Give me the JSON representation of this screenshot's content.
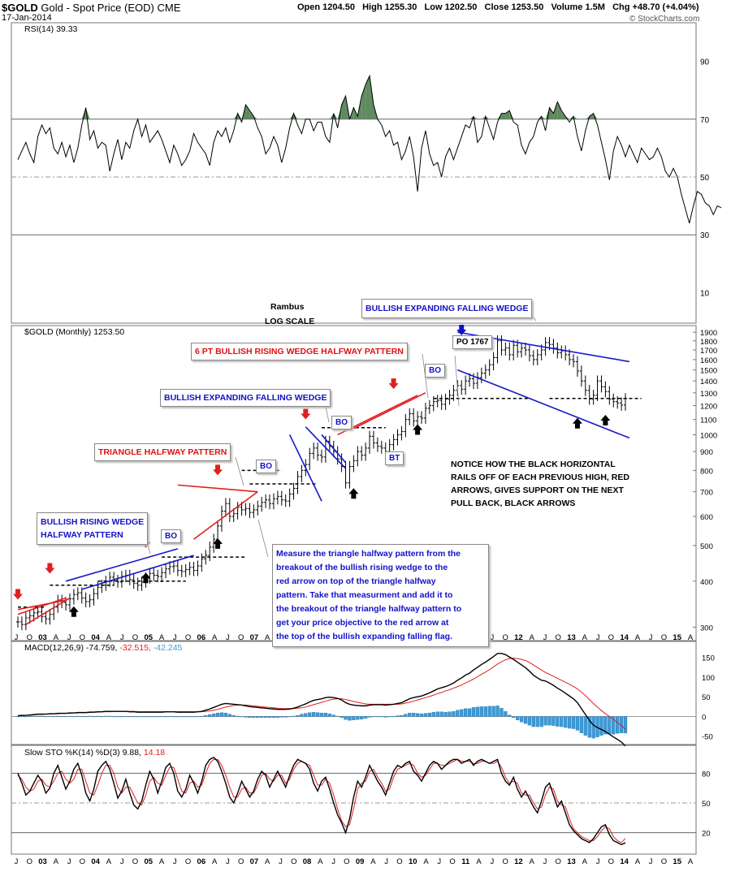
{
  "header": {
    "symbol": "$GOLD",
    "name": "Gold - Spot Price (EOD)",
    "exchange": "CME",
    "date": "17-Jan-2014",
    "open": "Open 1204.50",
    "high": "High 1255.30",
    "low": "Low 1202.50",
    "close": "Close 1253.50",
    "volume": "Volume 1.5M",
    "chg": "Chg +48.70 (+4.04%)",
    "watermark": "© StockCharts.com"
  },
  "colors": {
    "price_bar": "#000000",
    "support_line": "#000000",
    "triangle_line": "#e02020",
    "wedge_line": "#1818c8",
    "rsi_fill": "#5f8a5f",
    "macd_hist": "#3a9ad8",
    "signal_red": "#e02020",
    "annotation_blue": "#1212c8",
    "annotation_red": "#e01010"
  },
  "chart_data": [
    {
      "panel": "rsi",
      "type": "line",
      "indicator": "RSI(14)",
      "legend": "RSI(14) 39.33",
      "ylim": [
        0,
        100
      ],
      "yticks": [
        90,
        70,
        50,
        30,
        10
      ],
      "reference_lines": [
        70,
        50,
        30
      ],
      "fill_above": 70,
      "values": [
        56,
        59,
        62,
        58,
        55,
        64,
        68,
        65,
        67,
        60,
        58,
        62,
        57,
        61,
        55,
        60,
        68,
        74,
        63,
        66,
        60,
        62,
        61,
        52,
        58,
        63,
        56,
        62,
        60,
        66,
        70,
        64,
        68,
        62,
        64,
        66,
        63,
        59,
        55,
        61,
        58,
        54,
        56,
        59,
        65,
        62,
        60,
        58,
        54,
        62,
        66,
        64,
        67,
        62,
        66,
        72,
        69,
        75,
        73,
        71,
        67,
        64,
        58,
        60,
        64,
        61,
        55,
        60,
        67,
        72,
        68,
        65,
        70,
        70,
        66,
        69,
        69,
        64,
        62,
        72,
        67,
        75,
        78,
        70,
        74,
        71,
        78,
        82,
        85,
        75,
        70,
        68,
        64,
        66,
        61,
        62,
        56,
        59,
        64,
        57,
        45,
        60,
        66,
        58,
        54,
        55,
        50,
        57,
        60,
        56,
        60,
        64,
        68,
        67,
        71,
        62,
        64,
        71,
        67,
        63,
        69,
        72,
        72,
        73,
        69,
        68,
        61,
        58,
        62,
        64,
        69,
        71,
        66,
        74,
        72,
        76,
        73,
        71,
        69,
        71,
        64,
        59,
        66,
        71,
        72,
        68,
        62,
        56,
        49,
        59,
        64,
        61,
        57,
        61,
        58,
        55,
        60,
        58,
        56,
        57,
        60,
        57,
        52,
        50,
        53,
        50,
        44,
        39,
        34,
        40,
        45,
        44,
        41,
        40,
        37,
        40,
        39.33
      ]
    },
    {
      "panel": "price",
      "type": "line",
      "title": "$GOLD (Monthly) 1253.50",
      "scale": "log",
      "ylim": [
        280,
        1950
      ],
      "yticks": [
        1900,
        1800,
        1700,
        1600,
        1500,
        1400,
        1300,
        1200,
        1100,
        1000,
        900,
        800,
        700,
        600,
        500,
        400,
        300
      ],
      "x_tick_labels": [
        "J",
        "O",
        "03",
        "A",
        "J",
        "O",
        "04",
        "A",
        "J",
        "O",
        "05",
        "A",
        "J",
        "O",
        "06",
        "A",
        "J",
        "O",
        "07",
        "A",
        "J",
        "O",
        "08",
        "A",
        "J",
        "O",
        "09",
        "A",
        "J",
        "O",
        "10",
        "A",
        "J",
        "O",
        "11",
        "A",
        "J",
        "O",
        "12",
        "A",
        "J",
        "O",
        "13",
        "A",
        "J",
        "O",
        "14",
        "A",
        "J",
        "O",
        "15",
        "A"
      ],
      "close": [
        310,
        305,
        318,
        322,
        328,
        330,
        320,
        316,
        325,
        340,
        355,
        350,
        345,
        358,
        368,
        372,
        360,
        352,
        356,
        370,
        385,
        390,
        400,
        410,
        402,
        398,
        412,
        415,
        404,
        395,
        390,
        398,
        408,
        420,
        415,
        412,
        422,
        432,
        438,
        440,
        428,
        425,
        430,
        436,
        428,
        440,
        460,
        470,
        495,
        520,
        565,
        620,
        650,
        600,
        610,
        635,
        625,
        630,
        615,
        625,
        640,
        655,
        665,
        650,
        670,
        680,
        665,
        660,
        690,
        715,
        770,
        800,
        830,
        890,
        920,
        880,
        870,
        960,
        930,
        900,
        860,
        820,
        740,
        820,
        850,
        900,
        880,
        920,
        990,
        950,
        930,
        920,
        900,
        940,
        970,
        1000,
        1020,
        1100,
        1140,
        1090,
        1120,
        1110,
        1180,
        1200,
        1230,
        1240,
        1210,
        1250,
        1280,
        1320,
        1360,
        1330,
        1400,
        1420,
        1380,
        1430,
        1470,
        1500,
        1550,
        1620,
        1800,
        1700,
        1720,
        1650,
        1750,
        1680,
        1720,
        1700,
        1640,
        1600,
        1650,
        1700,
        1780,
        1760,
        1720,
        1670,
        1690,
        1650,
        1600,
        1580,
        1490,
        1400,
        1320,
        1250,
        1280,
        1400,
        1350,
        1310,
        1250,
        1230,
        1220,
        1204,
        1253.5
      ]
    },
    {
      "panel": "macd",
      "type": "line",
      "indicator": "MACD(12,26,9)",
      "legend_parts": [
        "MACD(12,26,9)",
        "-74.759,",
        "-32.515,",
        "-42.245"
      ],
      "ylim": [
        -65,
        170
      ],
      "yticks": [
        150,
        100,
        50,
        0,
        -50
      ],
      "macd": [
        2,
        3,
        3,
        4,
        5,
        6,
        6,
        6,
        7,
        7,
        8,
        8,
        8,
        9,
        9,
        10,
        10,
        10,
        11,
        11,
        12,
        12,
        13,
        13,
        13,
        13,
        13,
        13,
        12,
        12,
        11,
        11,
        11,
        11,
        11,
        11,
        11,
        12,
        12,
        12,
        11,
        11,
        11,
        11,
        11,
        12,
        13,
        16,
        19,
        23,
        27,
        31,
        33,
        32,
        31,
        30,
        29,
        27,
        25,
        24,
        23,
        22,
        21,
        20,
        19,
        18,
        18,
        18,
        19,
        21,
        24,
        28,
        32,
        37,
        41,
        43,
        45,
        48,
        49,
        48,
        46,
        42,
        35,
        31,
        29,
        28,
        27,
        27,
        29,
        30,
        30,
        30,
        29,
        30,
        31,
        33,
        35,
        40,
        45,
        48,
        50,
        52,
        56,
        60,
        65,
        70,
        73,
        76,
        80,
        85,
        92,
        98,
        105,
        110,
        118,
        125,
        132,
        138,
        145,
        152,
        160,
        160,
        157,
        151,
        145,
        138,
        131,
        124,
        115,
        105,
        98,
        92,
        90,
        85,
        79,
        72,
        66,
        59,
        52,
        45,
        35,
        20,
        5,
        -10,
        -22,
        -28,
        -33,
        -38,
        -45,
        -52,
        -58,
        -65,
        -74.759
      ],
      "signal": [
        2,
        2,
        3,
        3,
        4,
        5,
        5,
        6,
        6,
        7,
        7,
        8,
        8,
        8,
        9,
        9,
        10,
        10,
        10,
        11,
        11,
        12,
        12,
        12,
        13,
        13,
        13,
        13,
        13,
        13,
        12,
        12,
        12,
        12,
        12,
        12,
        12,
        12,
        12,
        12,
        12,
        12,
        12,
        12,
        12,
        12,
        12,
        13,
        14,
        16,
        18,
        21,
        24,
        26,
        28,
        29,
        29,
        29,
        28,
        27,
        26,
        25,
        24,
        23,
        22,
        21,
        20,
        20,
        20,
        20,
        21,
        22,
        24,
        27,
        30,
        33,
        36,
        39,
        42,
        44,
        45,
        45,
        43,
        41,
        38,
        36,
        34,
        32,
        31,
        31,
        31,
        31,
        31,
        31,
        31,
        31,
        32,
        34,
        36,
        39,
        42,
        45,
        48,
        51,
        54,
        58,
        61,
        65,
        68,
        72,
        76,
        80,
        85,
        90,
        95,
        101,
        107,
        113,
        119,
        126,
        133,
        139,
        144,
        147,
        148,
        147,
        145,
        142,
        137,
        131,
        124,
        118,
        112,
        107,
        102,
        97,
        92,
        87,
        82,
        76,
        70,
        62,
        53,
        43,
        33,
        24,
        15,
        7,
        0,
        -7,
        -15,
        -23,
        -32.515
      ]
    },
    {
      "panel": "stochastic",
      "type": "line",
      "indicator": "Slow STO %K(14) %D(3)",
      "legend_parts": [
        "Slow STO %K(14) %D(3)",
        "9.88,",
        "14.18"
      ],
      "ylim": [
        0,
        100
      ],
      "yticks": [
        80,
        50,
        20
      ],
      "reference_lines": [
        80,
        50,
        20
      ],
      "k": [
        80,
        70,
        58,
        62,
        70,
        78,
        72,
        60,
        65,
        80,
        88,
        76,
        64,
        72,
        84,
        90,
        78,
        60,
        52,
        64,
        82,
        88,
        92,
        84,
        70,
        55,
        62,
        74,
        60,
        48,
        44,
        52,
        68,
        82,
        74,
        60,
        72,
        86,
        90,
        80,
        62,
        56,
        64,
        78,
        70,
        60,
        72,
        88,
        94,
        96,
        92,
        82,
        70,
        56,
        50,
        60,
        72,
        64,
        56,
        62,
        74,
        82,
        78,
        66,
        74,
        82,
        74,
        66,
        78,
        88,
        94,
        92,
        90,
        84,
        70,
        62,
        72,
        76,
        64,
        50,
        38,
        30,
        20,
        34,
        56,
        72,
        66,
        76,
        88,
        80,
        72,
        66,
        58,
        70,
        82,
        88,
        86,
        90,
        92,
        82,
        78,
        72,
        80,
        88,
        92,
        90,
        84,
        88,
        92,
        94,
        94,
        90,
        92,
        94,
        88,
        92,
        94,
        92,
        90,
        92,
        94,
        80,
        72,
        68,
        76,
        64,
        56,
        62,
        54,
        46,
        40,
        52,
        66,
        70,
        58,
        46,
        52,
        40,
        28,
        22,
        18,
        14,
        12,
        10,
        14,
        20,
        26,
        28,
        18,
        12,
        10,
        8,
        9.88
      ],
      "d": [
        78,
        74,
        66,
        62,
        64,
        72,
        74,
        68,
        66,
        72,
        80,
        82,
        74,
        70,
        74,
        84,
        84,
        72,
        60,
        58,
        68,
        80,
        88,
        88,
        80,
        66,
        60,
        66,
        66,
        58,
        50,
        48,
        58,
        72,
        76,
        70,
        68,
        78,
        86,
        86,
        74,
        62,
        60,
        70,
        72,
        66,
        68,
        80,
        90,
        94,
        94,
        88,
        78,
        66,
        56,
        56,
        64,
        66,
        60,
        60,
        68,
        78,
        80,
        74,
        72,
        78,
        78,
        70,
        74,
        84,
        90,
        92,
        90,
        88,
        78,
        68,
        68,
        74,
        70,
        58,
        44,
        32,
        26,
        28,
        44,
        64,
        70,
        72,
        82,
        84,
        76,
        70,
        62,
        64,
        76,
        84,
        86,
        88,
        90,
        88,
        80,
        76,
        78,
        84,
        90,
        90,
        88,
        88,
        90,
        92,
        94,
        92,
        92,
        92,
        90,
        90,
        92,
        92,
        90,
        90,
        92,
        86,
        76,
        70,
        72,
        70,
        60,
        58,
        58,
        50,
        44,
        46,
        58,
        66,
        64,
        52,
        48,
        46,
        34,
        24,
        20,
        16,
        14,
        12,
        12,
        16,
        22,
        26,
        24,
        16,
        12,
        10,
        14.18
      ]
    }
  ],
  "annotations": {
    "rambus": "Rambus",
    "log_scale": "LOG SCALE",
    "bullish_rising_wedge": "BULLISH RISING WEDGE\nHALFWAY PATTERN",
    "triangle_halfway": "TRIANGLE HALFWAY PATTERN",
    "bullish_expanding_falling_wedge_1": "BULLISH EXPANDING FALLING WEDGE",
    "six_pt_rising_wedge": "6 PT BULLISH RISING WEDGE HALFWAY PATTERN",
    "bullish_expanding_falling_wedge_2": "BULLISH EXPANDING FALLING WEDGE",
    "po_1767": "PO 1767",
    "bo": "BO",
    "bt": "BT",
    "notice": "NOTICE HOW THE  BLACK HORIZONTAL\nRAILS OFF OF EACH PREVIOUS HIGH, RED\nARROWS,  GIVES SUPPORT ON THE NEXT\nPULL BACK,  BLACK ARROWS",
    "measure": "Measure the triangle halfway pattern from the\nbreakout of the bullish rising wedge to the\nred arrow on top of the triangle halfway\npattern. Take that measurment and add it to\nthe breakout of the triangle halfway pattern to\nget your price objective to the red arrow at\nthe top of the bullish expanding falling flag."
  }
}
